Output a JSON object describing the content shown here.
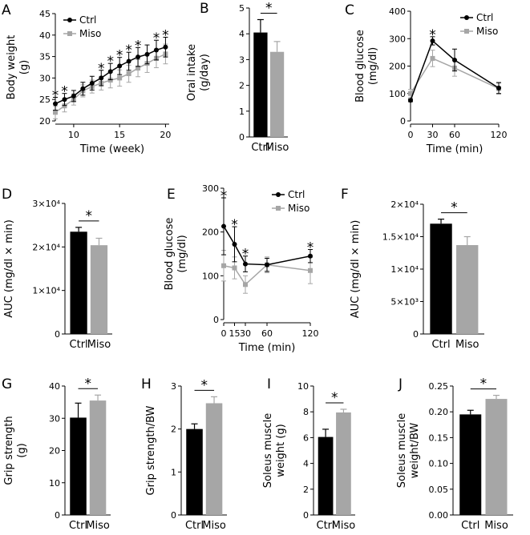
{
  "figure": {
    "colors": {
      "ctrl": "#000000",
      "miso": "#a6a6a6"
    }
  },
  "chart_data": [
    {
      "id": "A",
      "letter": "A",
      "type": "line",
      "xlabel": "Time (week)",
      "ylabel": [
        "Body weight",
        "(g)"
      ],
      "xlim": [
        8,
        20.4
      ],
      "ylim": [
        20,
        45
      ],
      "xticks": [
        10,
        15,
        20
      ],
      "yticks": [
        20,
        25,
        30,
        35,
        40,
        45
      ],
      "x": [
        8,
        9,
        10,
        11,
        12,
        13,
        14,
        15,
        16,
        17,
        18,
        19,
        20
      ],
      "series": [
        {
          "name": "Ctrl",
          "color": "#000000",
          "values": [
            24.0,
            25.0,
            25.8,
            27.5,
            28.8,
            30.0,
            31.5,
            32.8,
            33.9,
            34.9,
            35.5,
            36.5,
            37.2
          ],
          "errors": [
            1.5,
            1.4,
            1.3,
            1.5,
            1.6,
            1.8,
            1.9,
            2.0,
            2.1,
            2.2,
            2.2,
            2.3,
            2.3
          ]
        },
        {
          "name": "Miso",
          "color": "#a6a6a6",
          "values": [
            22.0,
            23.5,
            25.0,
            27.0,
            28.0,
            28.8,
            29.5,
            30.0,
            31.0,
            32.3,
            33.4,
            34.6,
            35.6
          ],
          "errors": [
            1.5,
            1.4,
            1.3,
            1.4,
            1.5,
            1.6,
            1.8,
            1.9,
            2.0,
            2.0,
            2.1,
            2.2,
            2.3
          ]
        }
      ],
      "stars": [
        8,
        9,
        13,
        14,
        15,
        16,
        17,
        19,
        20
      ],
      "legend": {
        "position": "top-left",
        "entries": [
          "Ctrl",
          "Miso"
        ]
      }
    },
    {
      "id": "B",
      "letter": "B",
      "type": "bar",
      "ylabel": [
        "Oral intake",
        "(g/day)"
      ],
      "categories": [
        "Ctrl",
        "Miso"
      ],
      "values": [
        4.05,
        3.3
      ],
      "errors": [
        0.5,
        0.4
      ],
      "ylim": [
        0,
        5
      ],
      "yticks": [
        0,
        1,
        2,
        3,
        4,
        5
      ],
      "ytick_labels": [
        "0",
        "1",
        "2",
        "3",
        "4",
        "5"
      ],
      "significance": "*"
    },
    {
      "id": "C",
      "letter": "C",
      "type": "line",
      "xlabel": "Time (min)",
      "ylabel": [
        "Blood glucose",
        "(mg/dl)"
      ],
      "xlim": [
        0,
        120
      ],
      "ylim": [
        0,
        400
      ],
      "xticks": [
        0,
        30,
        60,
        120
      ],
      "yticks": [
        0,
        100,
        200,
        300,
        400
      ],
      "x": [
        0,
        30,
        60,
        120
      ],
      "series": [
        {
          "name": "Ctrl",
          "color": "#000000",
          "values": [
            75,
            292,
            222,
            120
          ],
          "errors": [
            5,
            15,
            40,
            20
          ]
        },
        {
          "name": "Miso",
          "color": "#a6a6a6",
          "values": [
            100,
            228,
            193,
            118
          ],
          "errors": [
            15,
            30,
            30,
            20
          ]
        }
      ],
      "stars": [
        30
      ],
      "legend": {
        "position": "top-right",
        "entries": [
          "Ctrl",
          "Miso"
        ]
      }
    },
    {
      "id": "D",
      "letter": "D",
      "type": "bar",
      "ylabel": [
        "AUC (mg/dl × min)"
      ],
      "categories": [
        "Ctrl",
        "Miso"
      ],
      "values": [
        23500,
        20400
      ],
      "errors": [
        1000,
        1600
      ],
      "ylim": [
        0,
        30000
      ],
      "yticks": [
        0,
        10000,
        20000,
        30000
      ],
      "ytick_labels": [
        "0",
        "1×10⁴",
        "2×10⁴",
        "3×10⁴"
      ],
      "significance": "*"
    },
    {
      "id": "E",
      "letter": "E",
      "type": "line",
      "xlabel": "Time (min)",
      "ylabel": [
        "Blood glucose",
        "(mg/dl)"
      ],
      "xlim": [
        0,
        120
      ],
      "ylim": [
        0,
        300
      ],
      "xticks": [
        0,
        15,
        30,
        60,
        120
      ],
      "yticks": [
        0,
        100,
        200,
        300
      ],
      "x": [
        0,
        15,
        30,
        60,
        120
      ],
      "series": [
        {
          "name": "Ctrl",
          "color": "#000000",
          "values": [
            213,
            172,
            127,
            125,
            145
          ],
          "errors": [
            65,
            40,
            18,
            15,
            15
          ]
        },
        {
          "name": "Miso",
          "color": "#a6a6a6",
          "values": [
            123,
            118,
            80,
            125,
            112
          ],
          "errors": [
            35,
            25,
            20,
            18,
            30
          ]
        }
      ],
      "stars": [
        0,
        15,
        30,
        120
      ],
      "legend": {
        "position": "top-right",
        "entries": [
          "Ctrl",
          "Miso"
        ]
      }
    },
    {
      "id": "F",
      "letter": "F",
      "type": "bar",
      "ylabel": [
        "AUC (mg/dl × min)"
      ],
      "categories": [
        "Ctrl",
        "Miso"
      ],
      "values": [
        17000,
        13700
      ],
      "errors": [
        700,
        1300
      ],
      "ylim": [
        0,
        20000
      ],
      "yticks": [
        0,
        5000,
        10000,
        15000,
        20000
      ],
      "ytick_labels": [
        "0",
        "5×10³",
        "1×10⁴",
        "1.5×10⁴",
        "2×10⁴"
      ],
      "significance": "*"
    },
    {
      "id": "G",
      "letter": "G",
      "type": "bar",
      "ylabel": [
        "Grip strength",
        "(g)"
      ],
      "categories": [
        "Ctrl",
        "Miso"
      ],
      "values": [
        30.2,
        35.5
      ],
      "errors": [
        4.5,
        1.7
      ],
      "ylim": [
        0,
        40
      ],
      "yticks": [
        0,
        10,
        20,
        30,
        40
      ],
      "ytick_labels": [
        "0",
        "10",
        "20",
        "30",
        "40"
      ],
      "significance": "*"
    },
    {
      "id": "H",
      "letter": "H",
      "type": "bar",
      "ylabel": [
        "Grip strength/BW"
      ],
      "categories": [
        "Ctrl",
        "Miso"
      ],
      "values": [
        2.0,
        2.6
      ],
      "errors": [
        0.12,
        0.15
      ],
      "ylim": [
        0,
        3
      ],
      "yticks": [
        0,
        1,
        2,
        3
      ],
      "ytick_labels": [
        "0",
        "1",
        "2",
        "3"
      ],
      "significance": "*"
    },
    {
      "id": "I",
      "letter": "I",
      "type": "bar",
      "ylabel": [
        "Soleus muscle",
        "weight (g)"
      ],
      "categories": [
        "Ctrl",
        "Miso"
      ],
      "values": [
        6.05,
        7.95
      ],
      "errors": [
        0.6,
        0.25
      ],
      "ylim": [
        0,
        10
      ],
      "yticks": [
        0,
        2,
        4,
        6,
        8,
        10
      ],
      "ytick_labels": [
        "0",
        "2",
        "4",
        "6",
        "8",
        "10"
      ],
      "significance": "*"
    },
    {
      "id": "J",
      "letter": "J",
      "type": "bar",
      "ylabel": [
        "Soleus muscle",
        "weight/BW"
      ],
      "categories": [
        "Ctrl",
        "Miso"
      ],
      "values": [
        0.195,
        0.225
      ],
      "errors": [
        0.008,
        0.007
      ],
      "ylim": [
        0,
        0.25
      ],
      "yticks": [
        0,
        0.05,
        0.1,
        0.15,
        0.2,
        0.25
      ],
      "ytick_labels": [
        "0.00",
        "0.05",
        "0.10",
        "0.15",
        "0.20",
        "0.25"
      ],
      "significance": "*"
    }
  ]
}
